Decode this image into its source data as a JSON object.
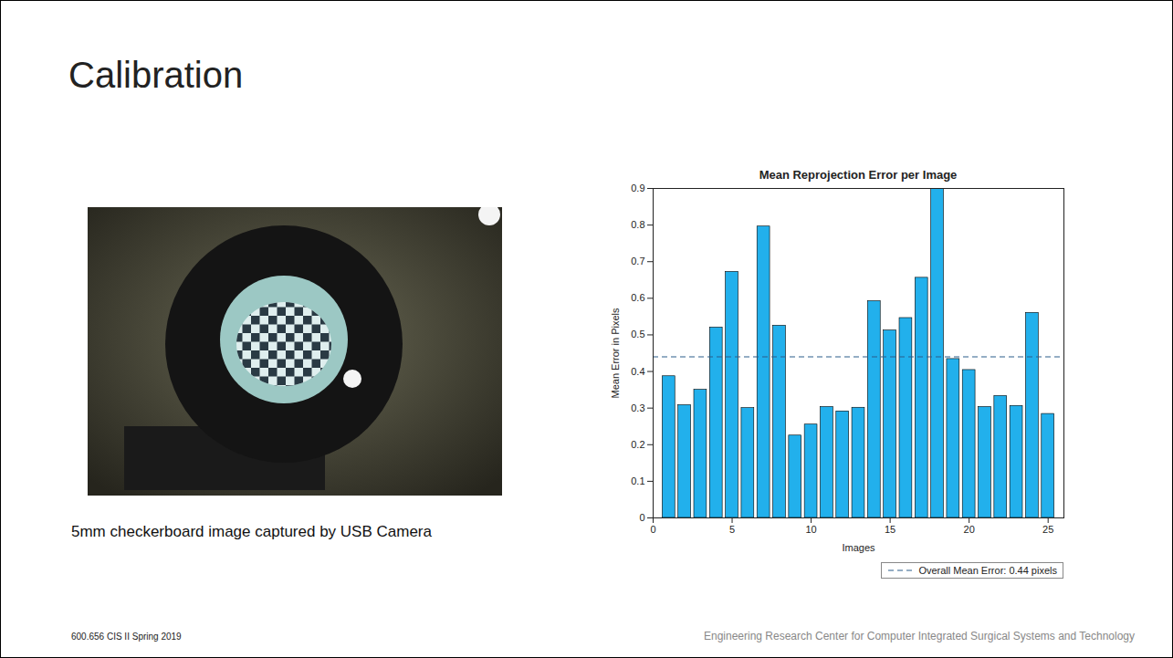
{
  "slide": {
    "title": "Calibration",
    "caption": "5mm checkerboard image captured by USB Camera",
    "footer_left": "600.656 CIS II Spring 2019",
    "footer_right": "Engineering Research Center for Computer Integrated Surgical Systems and Technology"
  },
  "chart_data": {
    "type": "bar",
    "title": "Mean Reprojection Error per Image",
    "x_label": "Images",
    "y_label": "Mean Error in Pixels",
    "x": [
      1,
      2,
      3,
      4,
      5,
      6,
      7,
      8,
      9,
      10,
      11,
      12,
      13,
      14,
      15,
      16,
      17,
      18,
      19,
      20,
      21,
      22,
      23,
      24,
      25
    ],
    "values": [
      0.387,
      0.308,
      0.35,
      0.52,
      0.672,
      0.3,
      0.796,
      0.525,
      0.225,
      0.255,
      0.303,
      0.291,
      0.301,
      0.592,
      0.512,
      0.546,
      0.656,
      0.9,
      0.434,
      0.404,
      0.303,
      0.333,
      0.306,
      0.56,
      0.284
    ],
    "color": "#22b0ec",
    "xlim": [
      0,
      26
    ],
    "xticks": [
      0,
      5,
      10,
      15,
      20,
      25
    ],
    "ylim": [
      0,
      0.9
    ],
    "yticks": [
      0,
      0.1,
      0.2,
      0.3,
      0.4,
      0.5,
      0.6,
      0.7,
      0.8,
      0.9
    ],
    "grid": false,
    "legend": "bottom",
    "mean_line": {
      "value": 0.44,
      "label": "Overall Mean Error: 0.44 pixels"
    }
  }
}
